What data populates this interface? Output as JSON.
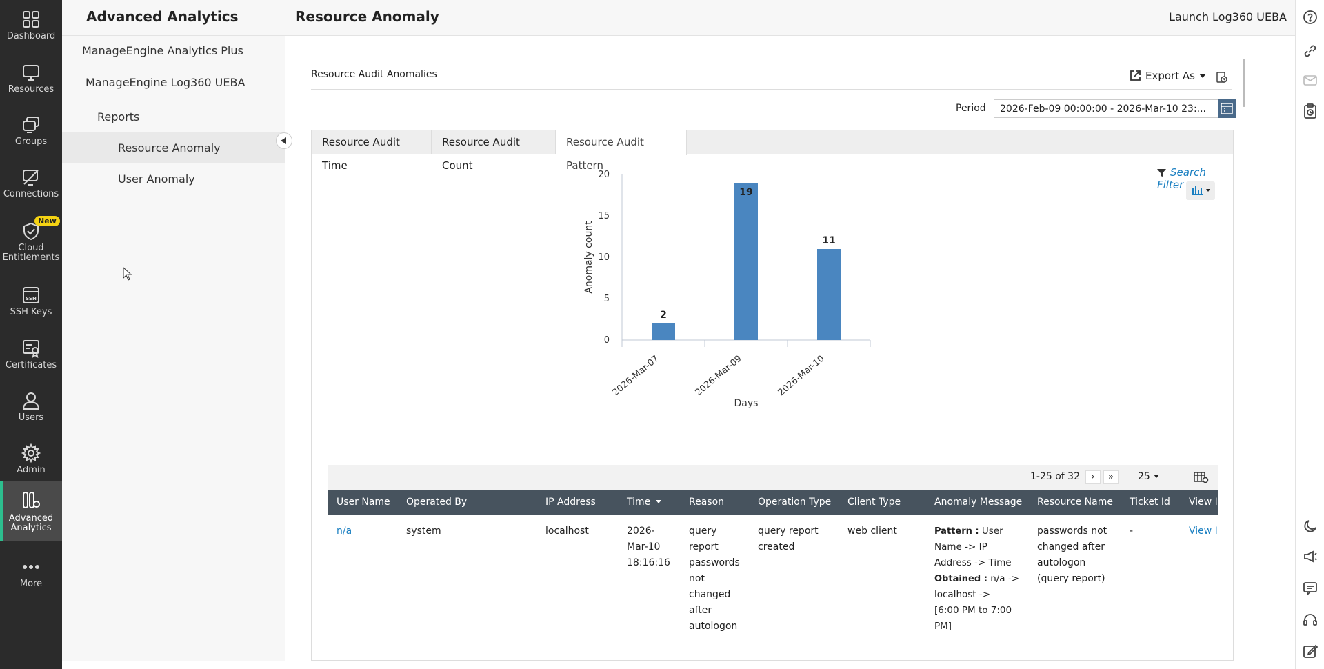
{
  "rail": {
    "items": [
      {
        "label": "Dashboard",
        "icon": "dashboard-icon"
      },
      {
        "label": "Resources",
        "icon": "monitor-icon"
      },
      {
        "label": "Groups",
        "icon": "groups-icon"
      },
      {
        "label": "Connections",
        "icon": "connections-icon"
      },
      {
        "label": "Cloud Entitlements",
        "icon": "cloud-shield-icon",
        "badge": "New"
      },
      {
        "label": "SSH Keys",
        "icon": "ssh-key-icon",
        "icon_text": "SSH"
      },
      {
        "label": "Certificates",
        "icon": "certificate-icon"
      },
      {
        "label": "Users",
        "icon": "user-icon"
      },
      {
        "label": "Admin",
        "icon": "gear-icon"
      },
      {
        "label": "Advanced Analytics",
        "icon": "analytics-icon",
        "active": true
      },
      {
        "label": "More",
        "icon": "more-icon"
      }
    ],
    "accent": "#2dbe8e"
  },
  "subnav": {
    "title": "Advanced Analytics",
    "items": [
      {
        "label": "ManageEngine Analytics Plus"
      },
      {
        "label": "ManageEngine Log360 UEBA"
      },
      {
        "label": "Reports"
      },
      {
        "label": "Resource Anomaly",
        "selected": true
      },
      {
        "label": "User Anomaly"
      }
    ]
  },
  "header": {
    "title": "Resource Anomaly",
    "launch": "Launch Log360 UEBA"
  },
  "content": {
    "section_title": "Resource Audit Anomalies",
    "export_label": "Export As",
    "period_label": "Period",
    "period_value": "2026-Feb-09 00:00:00 - 2026-Mar-10 23:...",
    "tabs": [
      {
        "label": "Resource Audit Time"
      },
      {
        "label": "Resource Audit Count"
      },
      {
        "label": "Resource Audit Pattern",
        "active": true
      }
    ],
    "search_filter": "Search Filter"
  },
  "chart_data": {
    "type": "bar",
    "categories": [
      "2026-Mar-07",
      "2026-Mar-09",
      "2026-Mar-10"
    ],
    "values": [
      2,
      19,
      11
    ],
    "data_labels": [
      "2",
      "19",
      "11"
    ],
    "xlabel": "Days",
    "ylabel": "Anomaly count",
    "ylim": [
      0,
      20
    ],
    "yticks": [
      "0",
      "5",
      "10",
      "15",
      "20"
    ],
    "bar_color": "#4a86c0",
    "grid": false
  },
  "table": {
    "pager": "1-25 of 32",
    "page_size": "25",
    "columns": [
      "User Name",
      "Operated By",
      "IP Address",
      "Time",
      "Reason",
      "Operation Type",
      "Client Type",
      "Anomaly Message",
      "Resource Name",
      "Ticket Id",
      "View I"
    ],
    "rows": [
      {
        "user_name": "n/a",
        "operated_by": "system",
        "ip_address": "localhost",
        "time": [
          "2026-",
          "Mar-10",
          "18:16:16"
        ],
        "reason": [
          "query",
          "report",
          "passwords",
          "not",
          "changed",
          "after",
          "autologon"
        ],
        "operation_type": [
          "query report",
          "created"
        ],
        "client_type": "web client",
        "anomaly": {
          "pattern_label": "Pattern :",
          "pattern_lines": [
            " User",
            "Name -> IP",
            "Address -> Time"
          ],
          "obtained_label": "Obtained :",
          "obtained_lines": [
            " n/a ->",
            "localhost ->",
            "[6:00 PM to 7:00",
            "PM]"
          ]
        },
        "resource_name": [
          "passwords not",
          "changed after",
          "autologon",
          "(query report)"
        ],
        "ticket_id": "-",
        "view": "View I"
      }
    ]
  }
}
